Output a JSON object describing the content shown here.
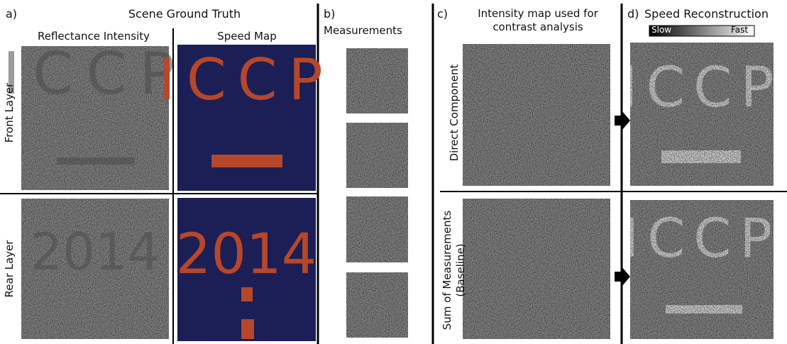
{
  "panels": {
    "a": {
      "label": "a)",
      "title": "Scene Ground Truth",
      "columns": [
        "Reflectance Intensity",
        "Speed Map"
      ],
      "rows": [
        "Front Layer",
        "Rear Layer"
      ],
      "front_text": "ICCP",
      "rear_text": "2014"
    },
    "b": {
      "label": "b)",
      "title": "Measurements"
    },
    "c": {
      "label": "c)",
      "title": "Intensity map used for contrast analysis",
      "rows": [
        "Direct Component",
        "Sum of Measurements (Baseline)"
      ]
    },
    "d": {
      "label": "d)",
      "title": "Speed Reconstruction",
      "colorbar": [
        "Slow",
        "Fast"
      ]
    }
  }
}
